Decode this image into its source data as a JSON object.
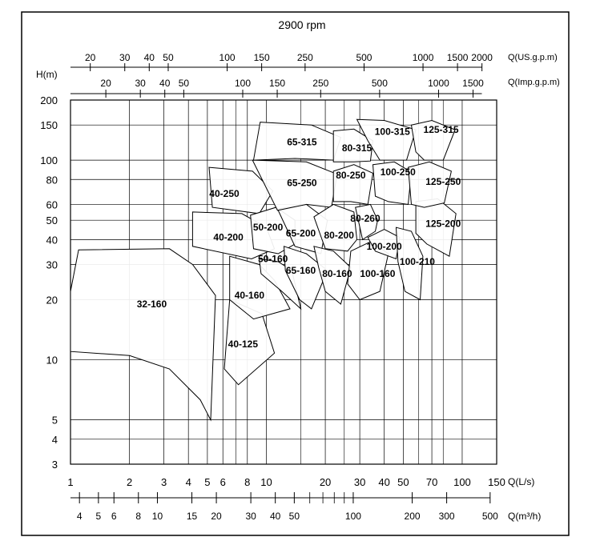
{
  "chart_data": {
    "type": "area",
    "title": "2900 rpm",
    "ylabel": "H(m)",
    "x_label_ls": "Q(L/s)",
    "x_label_m3h": "Q(m³/h)",
    "x_label_usgpm": "Q(US.g.p.m)",
    "x_label_impgpm": "Q(Imp.g.p.m)",
    "x_scale": "log",
    "y_scale": "log",
    "xlim": [
      1,
      150
    ],
    "ylim": [
      3,
      200
    ],
    "grid": true,
    "y_ticks": [
      "3",
      "4",
      "5",
      "10",
      "20",
      "30",
      "40",
      "50",
      "60",
      "80",
      "100",
      "150",
      "200"
    ],
    "x_ticks_ls": [
      "1",
      "2",
      "3",
      "4",
      "5",
      "6",
      "8",
      "10",
      "20",
      "30",
      "40",
      "50",
      "70",
      "100",
      "150"
    ],
    "x_ticks_m3h": [
      "4",
      "5",
      "6",
      "8",
      "10",
      "15",
      "20",
      "30",
      "40",
      "50",
      "100",
      "200",
      "300",
      "500"
    ],
    "x_ticks_usgpm": [
      "20",
      "30",
      "40",
      "50",
      "100",
      "150",
      "250",
      "500",
      "1000",
      "1500",
      "2000"
    ],
    "x_ticks_impgpm": [
      "20",
      "30",
      "40",
      "50",
      "100",
      "150",
      "250",
      "500",
      "1000",
      "1500"
    ],
    "regions": [
      {
        "label": "32-160",
        "cx": 2.6,
        "cy": 19
      },
      {
        "label": "40-125",
        "cx": 7.6,
        "cy": 12
      },
      {
        "label": "40-160",
        "cx": 8.2,
        "cy": 21
      },
      {
        "label": "40-200",
        "cx": 6.4,
        "cy": 41
      },
      {
        "label": "40-250",
        "cx": 6.1,
        "cy": 68
      },
      {
        "label": "50-160",
        "cx": 10.8,
        "cy": 32
      },
      {
        "label": "50-200",
        "cx": 10.2,
        "cy": 46
      },
      {
        "label": "65-160",
        "cx": 15,
        "cy": 28
      },
      {
        "label": "65-200",
        "cx": 15,
        "cy": 43
      },
      {
        "label": "65-250",
        "cx": 15.2,
        "cy": 77
      },
      {
        "label": "65-315",
        "cx": 15.2,
        "cy": 123
      },
      {
        "label": "80-160",
        "cx": 23,
        "cy": 27
      },
      {
        "label": "80-200",
        "cx": 23.5,
        "cy": 42
      },
      {
        "label": "80-250",
        "cx": 27,
        "cy": 84
      },
      {
        "label": "80-315",
        "cx": 29,
        "cy": 115
      },
      {
        "label": "80-260",
        "cx": 32,
        "cy": 51
      },
      {
        "label": "100-160",
        "cx": 37,
        "cy": 27
      },
      {
        "label": "100-200",
        "cx": 40,
        "cy": 37
      },
      {
        "label": "100-250",
        "cx": 47,
        "cy": 87
      },
      {
        "label": "100-315",
        "cx": 44,
        "cy": 139
      },
      {
        "label": "100-210",
        "cx": 59,
        "cy": 31
      },
      {
        "label": "125-200",
        "cx": 80,
        "cy": 48
      },
      {
        "label": "125-250",
        "cx": 80,
        "cy": 78
      },
      {
        "label": "125-315",
        "cx": 78,
        "cy": 142
      }
    ]
  }
}
